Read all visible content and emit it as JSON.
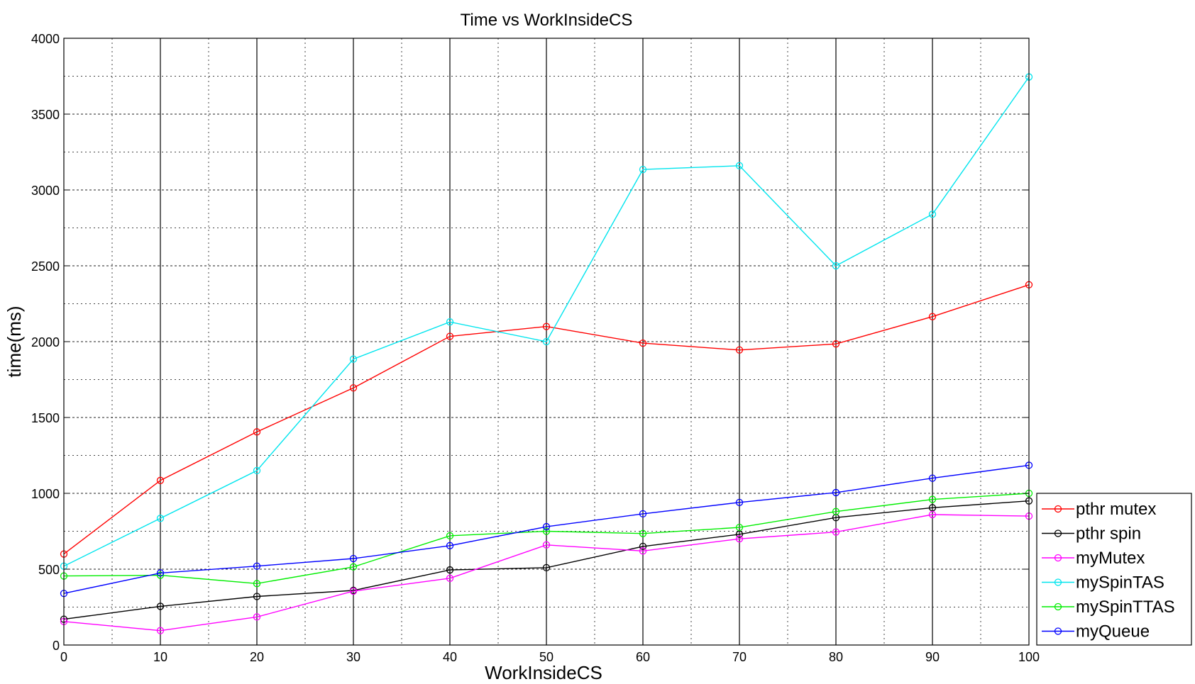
{
  "chart_data": {
    "type": "line",
    "title": "Time vs WorkInsideCS",
    "xlabel": "WorkInsideCS",
    "ylabel": "time(ms)",
    "xlim": [
      0,
      100
    ],
    "ylim": [
      0,
      4000
    ],
    "x_ticks": [
      0,
      10,
      20,
      30,
      40,
      50,
      60,
      70,
      80,
      90,
      100
    ],
    "y_ticks": [
      0,
      500,
      1000,
      1500,
      2000,
      2500,
      3000,
      3500,
      4000
    ],
    "grid": true,
    "legend_position": "bottom-right",
    "x": [
      0,
      10,
      20,
      30,
      40,
      50,
      60,
      70,
      80,
      90,
      100
    ],
    "series": [
      {
        "name": "pthr mutex",
        "color": "#ff0000",
        "values": [
          600,
          1085,
          1405,
          1695,
          2035,
          2100,
          1990,
          1945,
          1985,
          2165,
          2375
        ]
      },
      {
        "name": "pthr spin",
        "color": "#000000",
        "values": [
          170,
          255,
          320,
          360,
          495,
          510,
          650,
          730,
          840,
          905,
          950
        ]
      },
      {
        "name": "myMutex",
        "color": "#ff00ff",
        "values": [
          155,
          95,
          185,
          355,
          440,
          660,
          620,
          700,
          745,
          860,
          850
        ]
      },
      {
        "name": "mySpinTAS",
        "color": "#00e5ee",
        "values": [
          520,
          835,
          1150,
          1885,
          2130,
          2000,
          3135,
          3160,
          2500,
          2840,
          3745
        ]
      },
      {
        "name": "mySpinTTAS",
        "color": "#00ee00",
        "values": [
          455,
          460,
          405,
          515,
          720,
          750,
          735,
          775,
          880,
          960,
          1000
        ]
      },
      {
        "name": "myQueue",
        "color": "#0000ff",
        "values": [
          340,
          475,
          520,
          570,
          655,
          780,
          865,
          940,
          1005,
          1100,
          1185
        ]
      }
    ]
  }
}
